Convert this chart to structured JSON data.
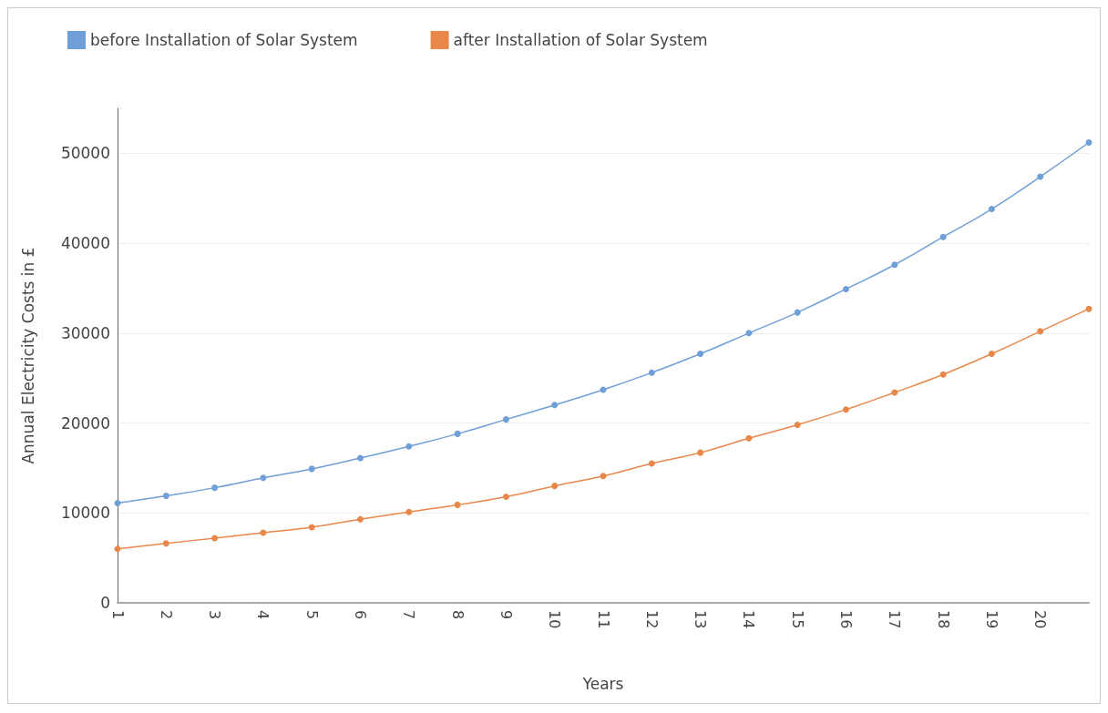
{
  "chart_data": {
    "type": "line",
    "xlabel": "Years",
    "ylabel": "Annual Electricity Costs in £",
    "categories": [
      "1",
      "2",
      "3",
      "4",
      "5",
      "6",
      "7",
      "8",
      "9",
      "10",
      "11",
      "12",
      "13",
      "14",
      "15",
      "16",
      "17",
      "18",
      "19",
      "20",
      null
    ],
    "series": [
      {
        "name": "before Installation of Solar System",
        "color": "#6f9fd6",
        "values": [
          11100,
          11900,
          12800,
          13900,
          14900,
          16100,
          17400,
          18800,
          20400,
          22000,
          23700,
          25600,
          27700,
          30000,
          32300,
          34900,
          37600,
          40700,
          43800,
          47400,
          51200
        ]
      },
      {
        "name": "after Installation of Solar System",
        "color": "#e8874a",
        "values": [
          6000,
          6600,
          7200,
          7800,
          8400,
          9300,
          10100,
          10900,
          11800,
          13000,
          14100,
          15500,
          16700,
          18300,
          19800,
          21500,
          23400,
          25400,
          27700,
          30200,
          32700
        ]
      }
    ],
    "ylim": [
      0,
      55000
    ],
    "yticks": [
      0,
      10000,
      20000,
      30000,
      40000,
      50000
    ],
    "grid": "y",
    "legend": "top left",
    "marker": "circle",
    "line_style": "solid"
  }
}
